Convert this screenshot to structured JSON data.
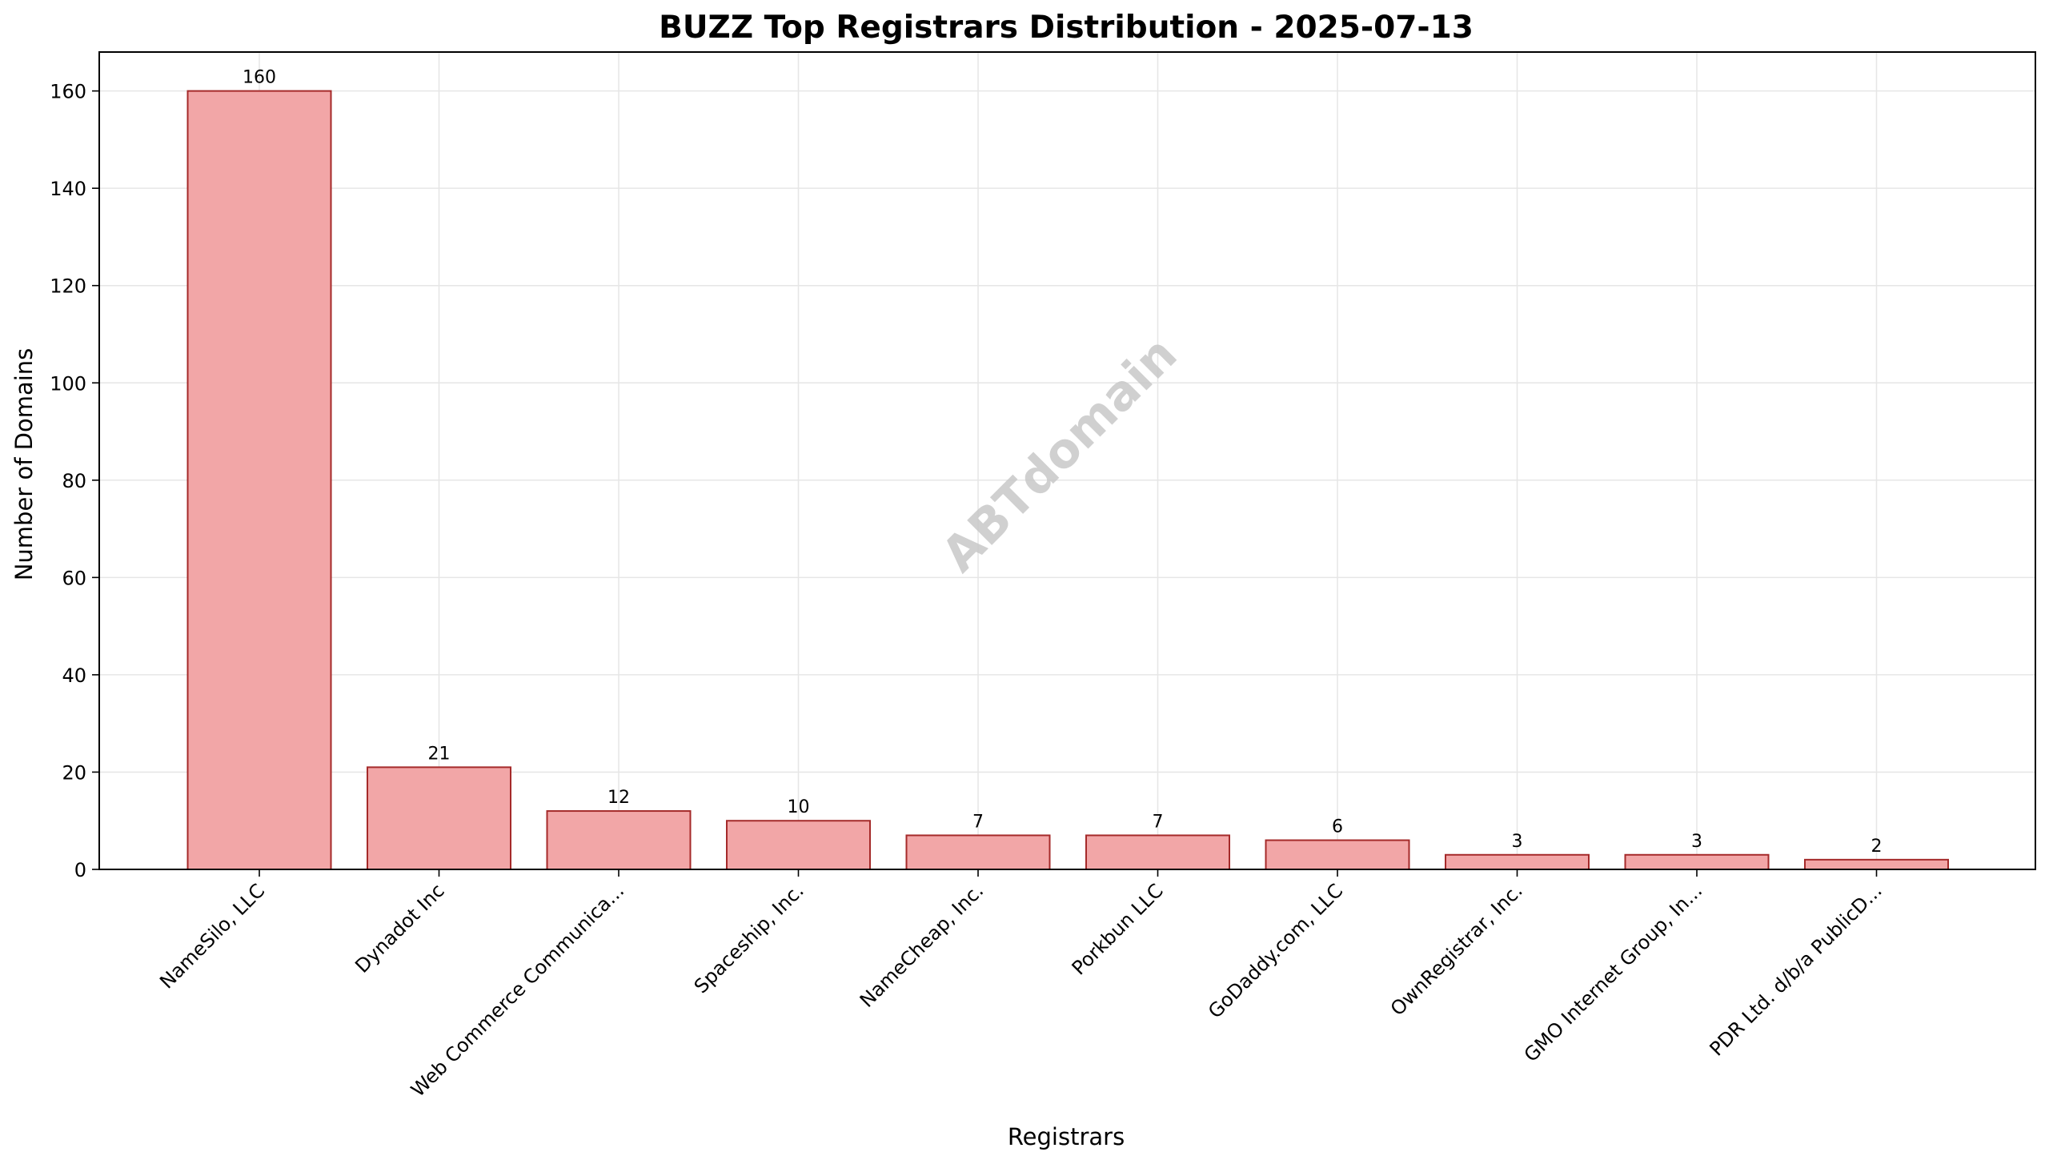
{
  "chart_data": {
    "type": "bar",
    "title": "BUZZ Top Registrars Distribution - 2025-07-13",
    "xlabel": "Registrars",
    "ylabel": "Number of Domains",
    "categories": [
      "NameSilo, LLC",
      "Dynadot Inc",
      "Web Commerce Communica...",
      "Spaceship, Inc.",
      "NameCheap, Inc.",
      "Porkbun LLC",
      "GoDaddy.com, LLC",
      "OwnRegistrar, Inc.",
      "GMO Internet Group, In...",
      "PDR Ltd. d/b/a PublicD..."
    ],
    "values": [
      160,
      21,
      12,
      10,
      7,
      7,
      6,
      3,
      3,
      2
    ],
    "ylim": [
      0,
      168
    ],
    "yticks": [
      0,
      20,
      40,
      60,
      80,
      100,
      120,
      140,
      160
    ],
    "grid": true,
    "legend": "none",
    "watermark": "ABTdomain",
    "colors": {
      "bar_fill": "#f2a6a7",
      "bar_edge": "#a52a2a",
      "grid": "#e6e6e6",
      "axis": "#000000",
      "watermark": "#c8c8c8"
    }
  }
}
